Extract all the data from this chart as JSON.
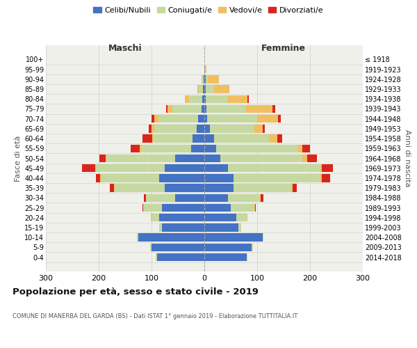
{
  "age_groups": [
    "0-4",
    "5-9",
    "10-14",
    "15-19",
    "20-24",
    "25-29",
    "30-34",
    "35-39",
    "40-44",
    "45-49",
    "50-54",
    "55-59",
    "60-64",
    "65-69",
    "70-74",
    "75-79",
    "80-84",
    "85-89",
    "90-94",
    "95-99",
    "100+"
  ],
  "birth_years": [
    "2014-2018",
    "2009-2013",
    "2004-2008",
    "1999-2003",
    "1994-1998",
    "1989-1993",
    "1984-1988",
    "1979-1983",
    "1974-1978",
    "1969-1973",
    "1964-1968",
    "1959-1963",
    "1954-1958",
    "1949-1953",
    "1944-1948",
    "1939-1943",
    "1934-1938",
    "1929-1933",
    "1924-1928",
    "1919-1923",
    "≤ 1918"
  ],
  "maschi": {
    "celibi": [
      90,
      100,
      125,
      80,
      85,
      80,
      55,
      75,
      85,
      75,
      55,
      25,
      22,
      15,
      12,
      5,
      4,
      2,
      1,
      0,
      0
    ],
    "coniugati": [
      2,
      2,
      2,
      5,
      15,
      35,
      55,
      95,
      110,
      130,
      130,
      95,
      75,
      80,
      75,
      55,
      25,
      8,
      3,
      0,
      0
    ],
    "vedovi": [
      0,
      0,
      0,
      0,
      1,
      1,
      1,
      1,
      2,
      2,
      2,
      2,
      2,
      5,
      8,
      10,
      8,
      3,
      1,
      0,
      0
    ],
    "divorziati": [
      0,
      0,
      0,
      0,
      0,
      1,
      3,
      8,
      8,
      25,
      12,
      18,
      18,
      5,
      5,
      2,
      0,
      0,
      0,
      0,
      0
    ]
  },
  "femmine": {
    "nubili": [
      80,
      90,
      110,
      65,
      60,
      50,
      45,
      55,
      55,
      45,
      30,
      22,
      18,
      10,
      5,
      4,
      3,
      3,
      2,
      1,
      0
    ],
    "coniugate": [
      2,
      2,
      2,
      5,
      20,
      45,
      60,
      110,
      165,
      175,
      155,
      155,
      105,
      85,
      95,
      75,
      40,
      15,
      5,
      1,
      0
    ],
    "vedove": [
      0,
      0,
      0,
      0,
      1,
      1,
      2,
      2,
      3,
      3,
      10,
      8,
      15,
      15,
      40,
      50,
      38,
      30,
      20,
      2,
      0
    ],
    "divorziate": [
      0,
      0,
      0,
      0,
      1,
      2,
      5,
      8,
      15,
      20,
      18,
      15,
      10,
      5,
      5,
      5,
      3,
      0,
      0,
      0,
      0
    ]
  },
  "colors": {
    "celibi": "#4472C4",
    "coniugati": "#c5d9a0",
    "vedovi": "#f0c060",
    "divorziati": "#d9251c"
  },
  "title": "Popolazione per età, sesso e stato civile - 2019",
  "subtitle": "COMUNE DI MANERBA DEL GARDA (BS) - Dati ISTAT 1° gennaio 2019 - Elaborazione TUTTITALIA.IT",
  "xlabel_maschi": "Maschi",
  "xlabel_femmine": "Femmine",
  "ylabel_left": "Fasce di età",
  "ylabel_right": "Anni di nascita",
  "xlim": 300,
  "bg_color": "#f0f0eb",
  "grid_color": "#cccccc"
}
